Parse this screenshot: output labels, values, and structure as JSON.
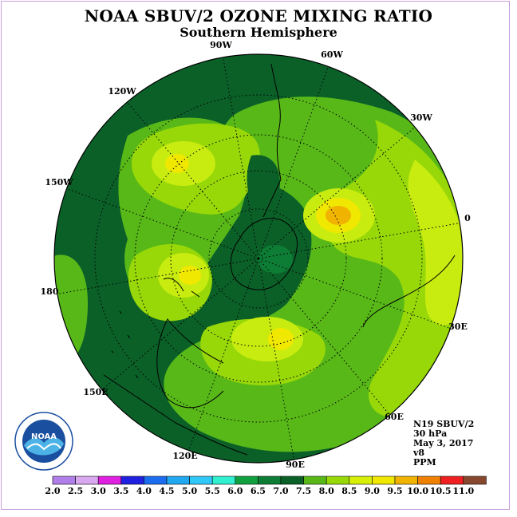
{
  "title": "NOAA SBUV/2 OZONE MIXING RATIO",
  "subtitle": "Southern Hemisphere",
  "longitude_labels": [
    "90W",
    "60W",
    "30W",
    "0",
    "30E",
    "60E",
    "90E",
    "120E",
    "150E",
    "180",
    "150W",
    "120W"
  ],
  "info": {
    "satellite": "N19 SBUV/2",
    "level": "30 hPa",
    "date": "May 3, 2017",
    "version": "v8",
    "units": "PPM"
  },
  "logo_text": "NOAA",
  "colorbar": {
    "ticks": [
      "2.0",
      "2.5",
      "3.0",
      "3.5",
      "4.0",
      "4.5",
      "5.0",
      "5.5",
      "6.0",
      "6.5",
      "7.0",
      "7.5",
      "8.0",
      "8.5",
      "9.0",
      "9.5",
      "10.0",
      "10.5",
      "11.0"
    ],
    "colors": [
      "#b07ee8",
      "#d8a8f0",
      "#e020e0",
      "#2020e0",
      "#1c6cf0",
      "#20a8f0",
      "#30c8f8",
      "#30f0d0",
      "#10a040",
      "#0d7c35",
      "#0b6028",
      "#58b818",
      "#98d808",
      "#d8f008",
      "#f0e800",
      "#f0b400",
      "#f08000",
      "#f02020",
      "#884830"
    ]
  },
  "colors": {
    "dark_green": "#0b6028",
    "mid_green": "#0d7c35",
    "green": "#58b818",
    "yellow_green": "#98d808",
    "lime": "#c8ec10",
    "yellow": "#f0e800",
    "orange": "#f0b400"
  }
}
